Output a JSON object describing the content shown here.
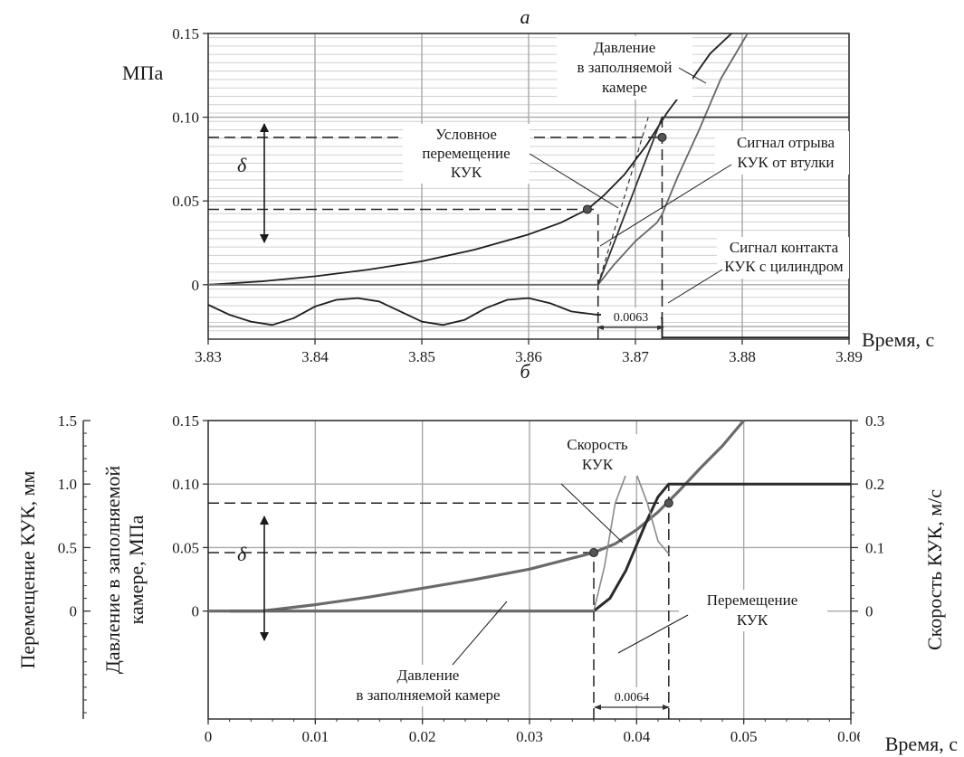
{
  "chart_data": [
    {
      "id": "a",
      "type": "line",
      "panel_label": "а",
      "xlabel": "Время, с",
      "ylabel": "МПа",
      "x_ticks": [
        "3.83",
        "3.84",
        "3.85",
        "3.86",
        "3.87",
        "3.88",
        "3.89"
      ],
      "y_ticks": [
        "0",
        "0.05",
        "0.10",
        "0.15"
      ],
      "xlim": [
        3.83,
        3.89
      ],
      "ylim": [
        -0.0325,
        0.15
      ],
      "grid": true,
      "series": [
        {
          "name": "Давление в заполняемой камере",
          "color": "#1e1e1e",
          "x": [
            3.83,
            3.835,
            3.84,
            3.845,
            3.85,
            3.855,
            3.86,
            3.863,
            3.8655,
            3.867,
            3.869,
            3.871,
            3.873,
            3.875,
            3.877,
            3.879
          ],
          "y": [
            0.0,
            0.002,
            0.005,
            0.009,
            0.014,
            0.021,
            0.03,
            0.037,
            0.045,
            0.053,
            0.066,
            0.083,
            0.103,
            0.12,
            0.138,
            0.15
          ]
        },
        {
          "name": "Сигнал отрыва КУК от втулки",
          "color": "#666666",
          "x": [
            3.83,
            3.8665,
            3.868,
            3.87,
            3.872,
            3.8725,
            3.874,
            3.876,
            3.878,
            3.8805
          ],
          "y": [
            0.0,
            0.0,
            0.012,
            0.026,
            0.037,
            0.042,
            0.065,
            0.093,
            0.123,
            0.15
          ]
        },
        {
          "name": "Условное перемещение КУК",
          "color": "#333333",
          "x": [
            3.8665,
            3.8725,
            3.8725,
            3.89
          ],
          "y": [
            0.0,
            0.1,
            0.1,
            0.1
          ]
        },
        {
          "name": "Сигнал контакта КУК с цилиндром",
          "color": "#1e1e1e",
          "x": [
            3.83,
            3.832,
            3.834,
            3.836,
            3.838,
            3.84,
            3.842,
            3.844,
            3.846,
            3.848,
            3.85,
            3.852,
            3.854,
            3.856,
            3.858,
            3.86,
            3.862,
            3.864,
            3.8665,
            3.869,
            3.8725,
            3.8725,
            3.89
          ],
          "y": [
            -0.012,
            -0.018,
            -0.022,
            -0.024,
            -0.02,
            -0.013,
            -0.009,
            -0.008,
            -0.01,
            -0.016,
            -0.022,
            -0.024,
            -0.021,
            -0.014,
            -0.009,
            -0.008,
            -0.011,
            -0.016,
            -0.018,
            -0.017,
            -0.02,
            -0.0315,
            -0.0315
          ]
        }
      ],
      "markers": [
        {
          "x": 3.8655,
          "y": 0.045
        },
        {
          "x": 3.8725,
          "y": 0.088
        }
      ],
      "dashed_h": [
        {
          "y": 0.045,
          "x_from": 3.83,
          "x_to": 3.8665
        },
        {
          "y": 0.088,
          "x_from": 3.83,
          "x_to": 3.8725
        }
      ],
      "dashed_v": [
        {
          "x": 3.8665,
          "y_from": -0.0325,
          "y_to": 0.045
        },
        {
          "x": 3.8725,
          "y_from": -0.0325,
          "y_to": 0.1
        }
      ],
      "interval_label": "0.0063",
      "delta_symbol": "δ",
      "annotations": {
        "pressure": [
          "Давление",
          "в заполняемой",
          "камере"
        ],
        "conditional": [
          "Условное",
          "перемещение",
          "КУК"
        ],
        "breakaway": [
          "Сигнал отрыва",
          "КУК от втулки"
        ],
        "contact": [
          "Сигнал контакта",
          "КУК с цилиндром"
        ]
      }
    },
    {
      "id": "b",
      "type": "line",
      "panel_label": "б",
      "xlabel": "Время, с",
      "ylabel_left_outer": "Перемещение КУК, мм",
      "ylabel_left_inner": [
        "Давление в заполняемой",
        "камере, МПа"
      ],
      "ylabel_right": "Скорость КУК, м/с",
      "x_ticks": [
        "0",
        "0.01",
        "0.02",
        "0.03",
        "0.04",
        "0.05",
        "0.06"
      ],
      "y_ticks": [
        "0",
        "0.05",
        "0.10",
        "0.15"
      ],
      "y_ticks_displacement": [
        "0",
        "0.5",
        "1.0",
        "1.5"
      ],
      "y_ticks_velocity": [
        "0",
        "0.1",
        "0.2",
        "0.3"
      ],
      "xlim": [
        0,
        0.06
      ],
      "ylim": [
        -0.085,
        0.15
      ],
      "ylim_displacement": [
        -0.85,
        1.5
      ],
      "ylim_velocity": [
        -0.17,
        0.3
      ],
      "grid": true,
      "series": [
        {
          "name": "Давление в заполняемой камере",
          "axis": "pressure",
          "color": "#6a6a6a",
          "x": [
            0.002,
            0.005,
            0.01,
            0.015,
            0.02,
            0.025,
            0.03,
            0.036,
            0.038,
            0.04,
            0.042,
            0.044,
            0.046,
            0.048,
            0.05
          ],
          "y": [
            0.0,
            0.0,
            0.005,
            0.011,
            0.018,
            0.025,
            0.033,
            0.046,
            0.053,
            0.064,
            0.078,
            0.095,
            0.113,
            0.13,
            0.15
          ]
        },
        {
          "name": "Перемещение КУК",
          "axis": "displacement",
          "color": "#2a2a2a",
          "x": [
            0.0,
            0.036,
            0.0375,
            0.039,
            0.04,
            0.041,
            0.042,
            0.043,
            0.06
          ],
          "y": [
            0.0,
            0.0,
            0.1,
            0.32,
            0.52,
            0.72,
            0.9,
            1.0,
            1.0
          ]
        },
        {
          "name": "Скорость КУК",
          "axis": "velocity",
          "color": "#8a8a8a",
          "x": [
            0.0,
            0.036,
            0.037,
            0.038,
            0.039,
            0.0395,
            0.04,
            0.041,
            0.042,
            0.043
          ],
          "y": [
            0.0,
            0.0,
            0.07,
            0.17,
            0.215,
            0.222,
            0.215,
            0.17,
            0.11,
            0.09
          ]
        }
      ],
      "markers": [
        {
          "x": 0.036,
          "y": 0.046
        },
        {
          "x": 0.043,
          "y": 0.085
        }
      ],
      "dashed_h": [
        {
          "y": 0.046,
          "x_from": 0.0,
          "x_to": 0.036
        },
        {
          "y": 0.085,
          "x_from": 0.0,
          "x_to": 0.043
        }
      ],
      "dashed_v": [
        {
          "x": 0.036,
          "y_from": -0.085,
          "y_to": 0.046
        },
        {
          "x": 0.043,
          "y_from": -0.085,
          "y_to": 0.1
        }
      ],
      "interval_label": "0.0064",
      "delta_symbol": "δ",
      "annotations": {
        "velocity": [
          "Скорость",
          "КУК"
        ],
        "displacement": [
          "Перемещение",
          "КУК"
        ],
        "pressure": [
          "Давление",
          "в заполняемой камере"
        ]
      }
    }
  ]
}
